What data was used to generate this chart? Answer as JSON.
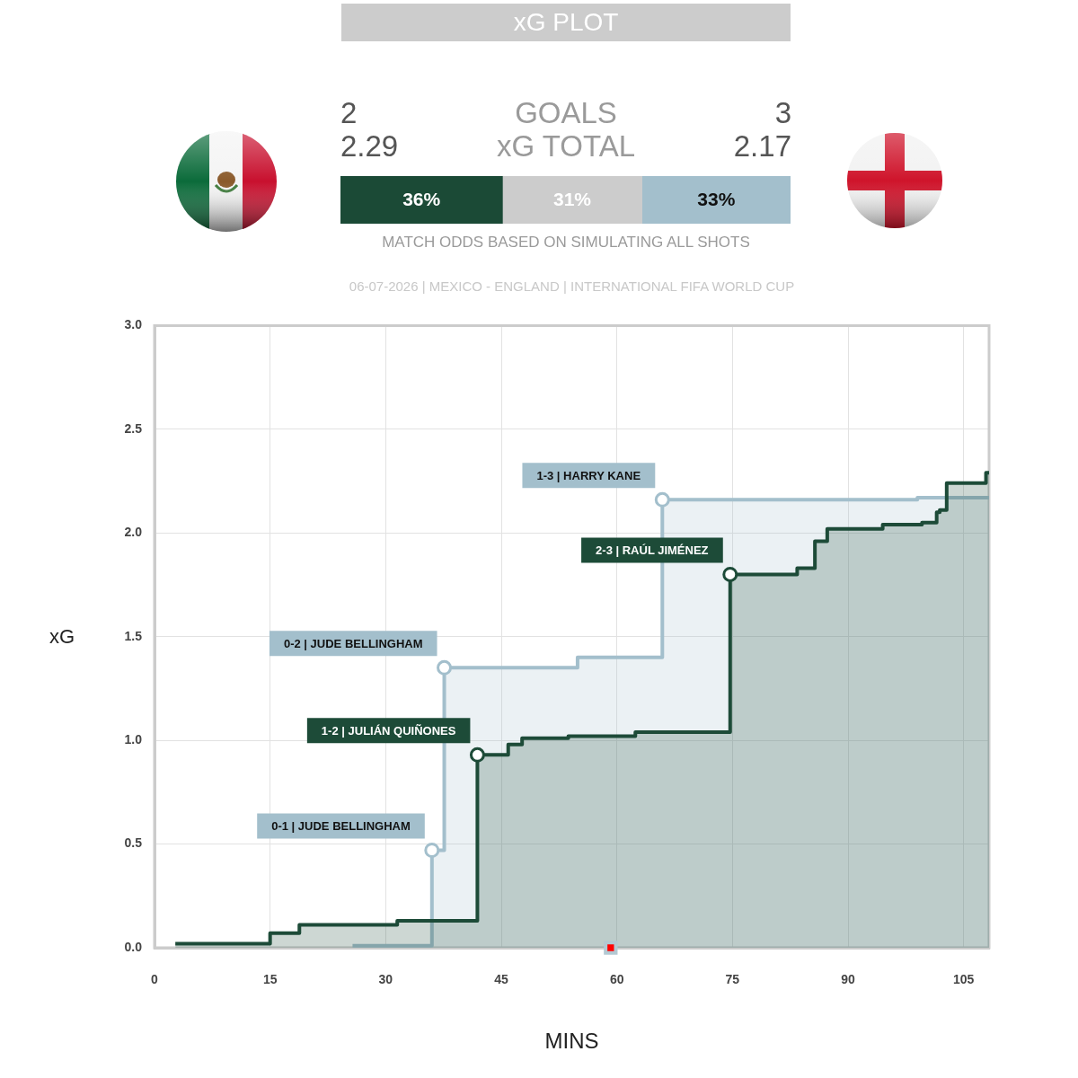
{
  "chart_data": [
    {
      "type": "other",
      "title": "xG PLOT",
      "annotations": [
        "2",
        "GOALS",
        "3",
        "2.29",
        "xG TOTAL",
        "2.17"
      ]
    },
    {
      "type": "bar",
      "orientation": "horizontal",
      "stacked": true,
      "tick_labels": false,
      "categories": [
        null
      ],
      "series": [
        {
          "color": "#1b4a36",
          "values": [
            36
          ],
          "value_labels": [
            "36%"
          ]
        },
        {
          "color": "#cccccc",
          "values": [
            31
          ],
          "value_labels": [
            "31%"
          ]
        },
        {
          "color": "#a3bfcc",
          "values": [
            33
          ],
          "value_labels": [
            "33%"
          ]
        }
      ],
      "annotations": [
        "MATCH ODDS BASED ON SIMULATING ALL SHOTS"
      ]
    },
    {
      "type": "area",
      "subtitle": "06-07-2026 | MEXICO - ENGLAND | INTERNATIONAL FIFA WORLD CUP",
      "xlabel": "MINS",
      "ylabel": "xG",
      "xlim": [
        0,
        108.3
      ],
      "ylim": [
        0,
        3
      ],
      "xticks": [
        0,
        15,
        30,
        45,
        60,
        75,
        90,
        105
      ],
      "yticks": [
        {
          "value": 0,
          "label": "0.0"
        },
        0.5,
        {
          "value": 1,
          "label": "1.0"
        },
        1.5,
        {
          "value": 2,
          "label": "2.0"
        },
        2.5,
        {
          "value": 3,
          "label": "3.0"
        }
      ],
      "grid": true,
      "series": [
        {
          "color": "#a3bfcc",
          "x": [
            25.7,
            36,
            36,
            37.6,
            37.6,
            54.9,
            54.9,
            65.9,
            65.9,
            99,
            99,
            108.3
          ],
          "values": [
            0.01,
            0.01,
            0.47,
            0.47,
            1.35,
            1.35,
            1.4,
            1.4,
            2.16,
            2.16,
            2.17,
            2.17
          ]
        },
        {
          "color": "#1d4b38",
          "x": [
            2.7,
            15,
            15,
            18.8,
            18.8,
            31.5,
            31.5,
            41.9,
            41.9,
            45.9,
            45.9,
            47.7,
            47.7,
            53.7,
            53.7,
            62.4,
            62.4,
            74.7,
            74.7,
            83.4,
            83.4,
            85.7,
            85.7,
            87.3,
            87.3,
            94.5,
            94.5,
            99.6,
            99.6,
            101.5,
            101.5,
            101.9,
            101.9,
            102.8,
            102.8,
            107.9,
            107.9,
            108.3
          ],
          "values": [
            0.02,
            0.02,
            0.07,
            0.07,
            0.11,
            0.11,
            0.13,
            0.13,
            0.93,
            0.93,
            0.98,
            0.98,
            1.01,
            1.01,
            1.02,
            1.02,
            1.04,
            1.04,
            1.8,
            1.8,
            1.83,
            1.83,
            1.96,
            1.96,
            2.02,
            2.02,
            2.04,
            2.04,
            2.05,
            2.05,
            2.1,
            2.1,
            2.11,
            2.11,
            2.24,
            2.24,
            2.29,
            2.29
          ]
        },
        {
          "type": "scatter",
          "marker": "circle",
          "color": "#a3bfcc",
          "x": [
            36,
            37.6,
            65.9
          ],
          "values": [
            0.47,
            1.35,
            2.16
          ]
        },
        {
          "type": "scatter",
          "marker": "circle",
          "color": "#1d4b38",
          "x": [
            41.9,
            74.7
          ],
          "values": [
            0.93,
            1.8
          ]
        },
        {
          "type": "scatter",
          "marker": "square",
          "color": "#ff0000",
          "x": [
            59.2
          ],
          "values": [
            0
          ]
        }
      ],
      "annotations": [
        {
          "text": "0-1 | JUDE BELLINGHAM",
          "x": 36,
          "y": 0.47
        },
        {
          "text": "0-2 | JUDE BELLINGHAM",
          "x": 37.6,
          "y": 1.35
        },
        {
          "text": "1-2 | JULIÁN QUIÑONES",
          "x": 41.9,
          "y": 0.93
        },
        {
          "text": "1-3 | HARRY KANE",
          "x": 65.9,
          "y": 2.16
        },
        {
          "text": "2-3 | RAÚL JIMÉNEZ",
          "x": 74.7,
          "y": 1.8
        }
      ]
    }
  ]
}
